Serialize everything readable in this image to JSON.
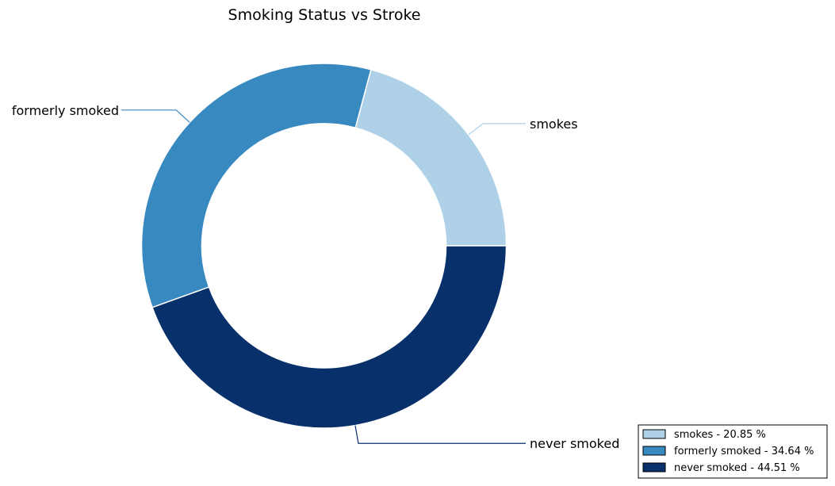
{
  "chart_data": {
    "type": "pie",
    "donut": true,
    "title": "Smoking Status vs Stroke",
    "categories": [
      "smokes",
      "formerly smoked",
      "never smoked"
    ],
    "values": [
      20.85,
      34.64,
      44.51
    ],
    "unit": "%",
    "colors": [
      "#afd1e7",
      "#3989c1",
      "#08306b"
    ],
    "legend": {
      "placement": "bottom-right",
      "entries": [
        "smokes - 20.85 %",
        "formerly smoked - 34.64 %",
        "never smoked - 44.51 %"
      ]
    }
  }
}
